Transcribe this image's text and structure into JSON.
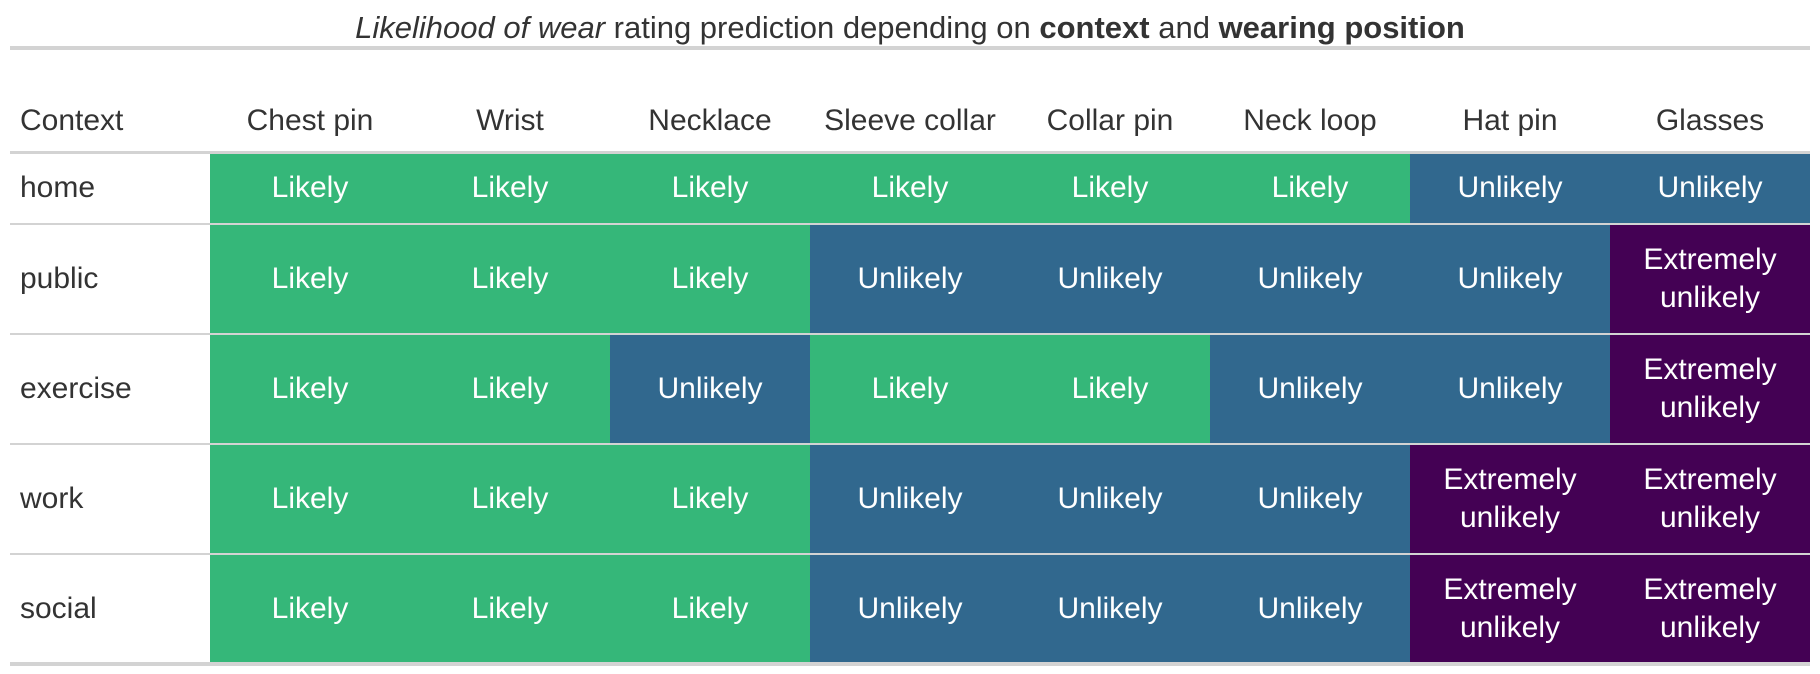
{
  "title": {
    "part1_italic": "Likelihood of wear",
    "part2": " rating prediction depending on ",
    "part3_bold": "context",
    "part4": " and ",
    "part5_bold": "wearing position"
  },
  "colors": {
    "Likely": "#35b779",
    "Unlikely": "#31688e",
    "Extremely unlikely": "#440154"
  },
  "chart_data": {
    "type": "table",
    "row_header": "Context",
    "columns": [
      "Chest pin",
      "Wrist",
      "Necklace",
      "Sleeve collar",
      "Collar pin",
      "Neck loop",
      "Hat pin",
      "Glasses"
    ],
    "rows": [
      {
        "context": "home",
        "values": [
          "Likely",
          "Likely",
          "Likely",
          "Likely",
          "Likely",
          "Likely",
          "Unlikely",
          "Unlikely"
        ]
      },
      {
        "context": "public",
        "values": [
          "Likely",
          "Likely",
          "Likely",
          "Unlikely",
          "Unlikely",
          "Unlikely",
          "Unlikely",
          "Extremely unlikely"
        ]
      },
      {
        "context": "exercise",
        "values": [
          "Likely",
          "Likely",
          "Unlikely",
          "Likely",
          "Likely",
          "Unlikely",
          "Unlikely",
          "Extremely unlikely"
        ]
      },
      {
        "context": "work",
        "values": [
          "Likely",
          "Likely",
          "Likely",
          "Unlikely",
          "Unlikely",
          "Unlikely",
          "Extremely unlikely",
          "Extremely unlikely"
        ]
      },
      {
        "context": "social",
        "values": [
          "Likely",
          "Likely",
          "Likely",
          "Unlikely",
          "Unlikely",
          "Unlikely",
          "Extremely unlikely",
          "Extremely unlikely"
        ]
      }
    ]
  }
}
